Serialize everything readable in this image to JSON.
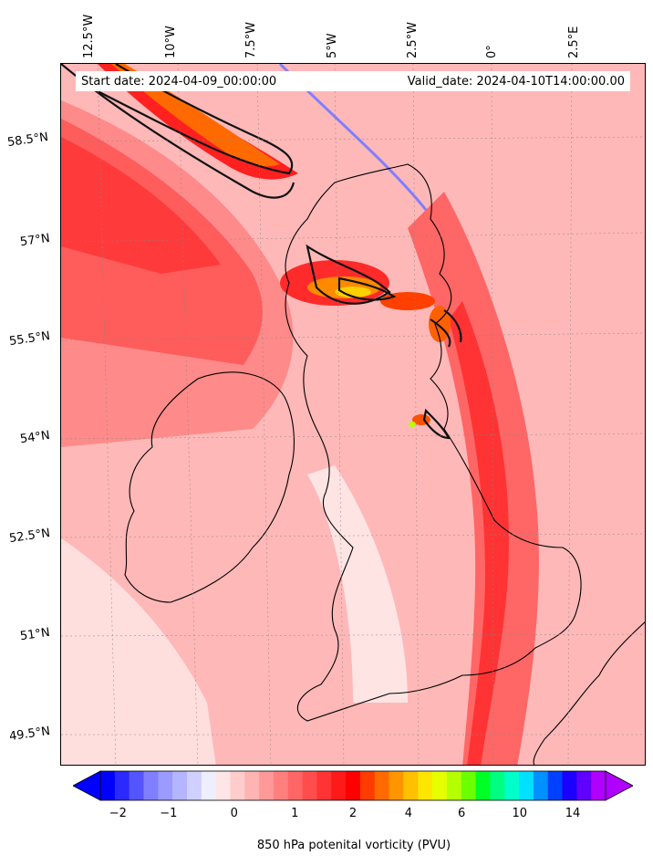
{
  "header": {
    "start_date": "Start date: 2024-04-09_00:00:00",
    "valid_date": "Valid_date: 2024-04-10T14:00:00.00"
  },
  "axes": {
    "lon_labels": [
      "12.5°W",
      "10°W",
      "7.5°W",
      "5°W",
      "2.5°W",
      "0°",
      "2.5°E"
    ],
    "lat_labels": [
      "58.5°N",
      "57°N",
      "55.5°N",
      "54°N",
      "52.5°N",
      "51°N",
      "49.5°N"
    ]
  },
  "colorbar": {
    "label": "850 hPa potenital vorticity (PVU)",
    "ticks": [
      "−2",
      "−1",
      "0",
      "1",
      "2",
      "4",
      "6",
      "10",
      "14"
    ],
    "colors": [
      "#0000ff",
      "#2a2aff",
      "#5555ff",
      "#7f7fff",
      "#9a9aff",
      "#b5b5ff",
      "#d0d0ff",
      "#eeeeff",
      "#ffe6e6",
      "#ffcccc",
      "#ffb3b3",
      "#ff9999",
      "#ff7f7f",
      "#ff6666",
      "#ff4d4d",
      "#ff3333",
      "#ff1a1a",
      "#ff0000",
      "#ff3c00",
      "#ff6a00",
      "#ff9600",
      "#ffc000",
      "#ffe600",
      "#e6ff00",
      "#b4ff00",
      "#6cff00",
      "#00ff24",
      "#00ff80",
      "#00ffc8",
      "#00e0ff",
      "#0090ff",
      "#0040ff",
      "#1a00ff",
      "#6000ff",
      "#b000ff"
    ]
  }
}
